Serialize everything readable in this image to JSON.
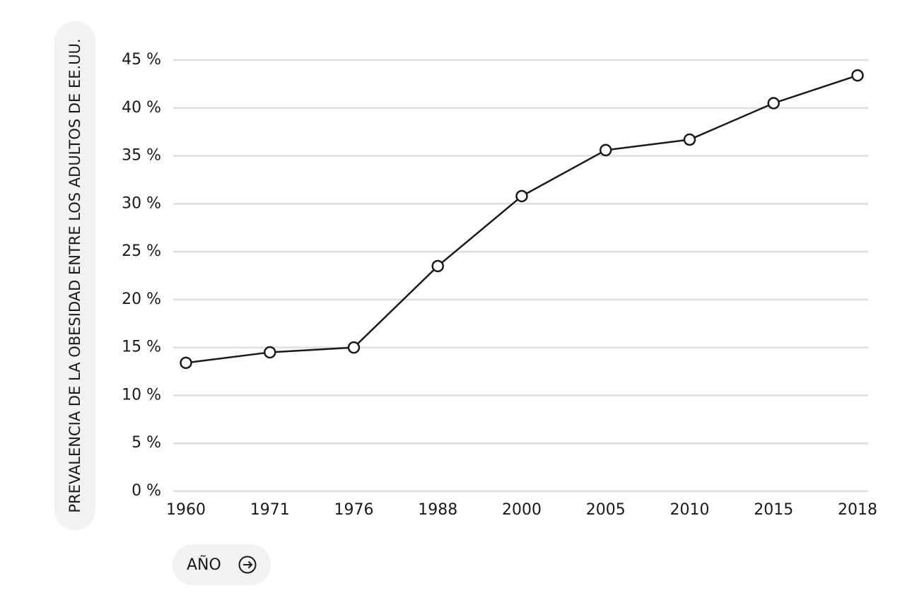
{
  "chart_data": {
    "type": "line",
    "y_label": "PREVALENCIA DE LA OBESIDAD ENTRE LOS ADULTOS DE EE.UU.",
    "x_label": "AÑO",
    "categories": [
      "1960",
      "1971",
      "1976",
      "1988",
      "2000",
      "2005",
      "2010",
      "2015",
      "2018"
    ],
    "values": [
      13.4,
      14.5,
      15.0,
      23.5,
      30.8,
      35.6,
      36.7,
      40.5,
      43.4
    ],
    "color": "#1a1a1a",
    "ylim": [
      0,
      45
    ],
    "yticks": [
      {
        "value": 0,
        "label": "0 %"
      },
      {
        "value": 5,
        "label": "5 %"
      },
      {
        "value": 10,
        "label": "10 %"
      },
      {
        "value": 15,
        "label": "15 %"
      },
      {
        "value": 20,
        "label": "20 %"
      },
      {
        "value": 25,
        "label": "25 %"
      },
      {
        "value": 30,
        "label": "30 %"
      },
      {
        "value": 35,
        "label": "35 %"
      },
      {
        "value": 40,
        "label": "40 %"
      },
      {
        "value": 45,
        "label": "45 %"
      }
    ],
    "grid": true
  }
}
